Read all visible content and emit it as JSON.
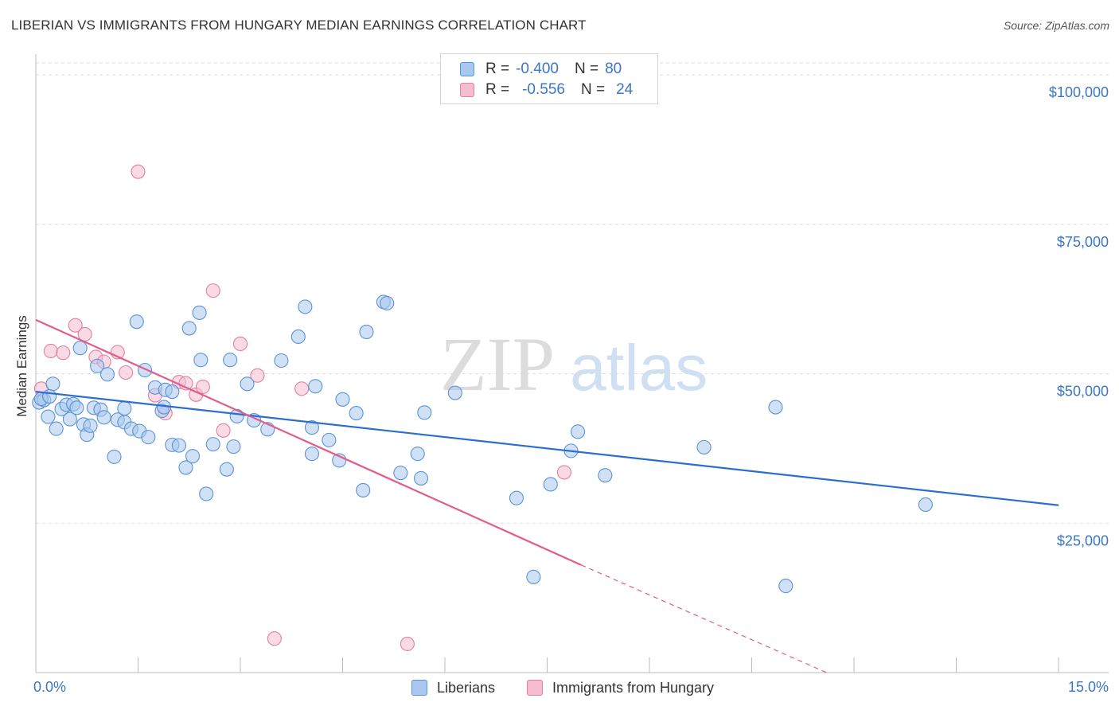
{
  "title": "LIBERIAN VS IMMIGRANTS FROM HUNGARY MEDIAN EARNINGS CORRELATION CHART",
  "source": "Source: ZipAtlas.com",
  "watermark": {
    "zip": "ZIP",
    "atlas": "atlas"
  },
  "legend": {
    "rows": [
      {
        "r_label": "R =",
        "r_value": "-0.400",
        "n_label": "N =",
        "n_value": "80"
      },
      {
        "r_label": "R =",
        "r_value": "-0.556",
        "n_label": "N =",
        "n_value": "24"
      }
    ]
  },
  "bottom_legend": {
    "liberians": "Liberians",
    "hungary": "Immigrants from Hungary"
  },
  "colors": {
    "blue_fill": "#a9c8ef",
    "blue_stroke": "#5b93d6",
    "blue_line": "#2a6fcf",
    "pink_fill": "#f6bdd0",
    "pink_stroke": "#e27fa2",
    "pink_line": "#e05d8e",
    "accent_text": "#3a76c4",
    "grid": "#dddddd"
  },
  "chart_data": {
    "type": "scatter",
    "title": "LIBERIAN VS IMMIGRANTS FROM HUNGARY MEDIAN EARNINGS CORRELATION CHART",
    "xlabel": "",
    "ylabel": "Median Earnings",
    "xlim": [
      0,
      15
    ],
    "ylim": [
      0,
      102000
    ],
    "x_tick_labels": [
      "0.0%",
      "15.0%"
    ],
    "y_ticks": [
      {
        "value": 25000,
        "label": "$25,000"
      },
      {
        "value": 50000,
        "label": "$50,000"
      },
      {
        "value": 75000,
        "label": "$75,000"
      },
      {
        "value": 100000,
        "label": "$100,000"
      }
    ],
    "grid": true,
    "legend_position": "top-center",
    "series": [
      {
        "name": "Liberians",
        "color": "#a9c8ef",
        "points": [
          [
            0.05,
            45200
          ],
          [
            0.12,
            45600
          ],
          [
            0.18,
            42800
          ],
          [
            0.25,
            48300
          ],
          [
            0.3,
            40800
          ],
          [
            0.38,
            44100
          ],
          [
            0.45,
            44800
          ],
          [
            0.5,
            42400
          ],
          [
            0.55,
            44900
          ],
          [
            0.6,
            44300
          ],
          [
            0.65,
            54300
          ],
          [
            0.7,
            41500
          ],
          [
            0.75,
            39800
          ],
          [
            0.8,
            41300
          ],
          [
            0.85,
            44300
          ],
          [
            0.9,
            51300
          ],
          [
            0.95,
            44000
          ],
          [
            1.0,
            42700
          ],
          [
            1.05,
            49900
          ],
          [
            1.15,
            36100
          ],
          [
            1.2,
            42300
          ],
          [
            1.3,
            44200
          ],
          [
            1.3,
            41900
          ],
          [
            1.4,
            40800
          ],
          [
            1.48,
            58700
          ],
          [
            1.52,
            40400
          ],
          [
            1.6,
            50600
          ],
          [
            1.65,
            39400
          ],
          [
            1.75,
            47700
          ],
          [
            1.85,
            43800
          ],
          [
            1.88,
            44400
          ],
          [
            1.9,
            47300
          ],
          [
            2.0,
            47000
          ],
          [
            2.0,
            38100
          ],
          [
            2.1,
            38000
          ],
          [
            2.2,
            34300
          ],
          [
            2.25,
            57600
          ],
          [
            2.3,
            36200
          ],
          [
            2.4,
            60200
          ],
          [
            2.42,
            52300
          ],
          [
            2.5,
            29900
          ],
          [
            2.6,
            38200
          ],
          [
            2.8,
            34000
          ],
          [
            2.85,
            52300
          ],
          [
            2.9,
            37800
          ],
          [
            2.95,
            42900
          ],
          [
            3.1,
            48300
          ],
          [
            3.2,
            42200
          ],
          [
            3.4,
            40700
          ],
          [
            3.6,
            52200
          ],
          [
            3.85,
            56200
          ],
          [
            3.95,
            61200
          ],
          [
            4.05,
            36600
          ],
          [
            4.05,
            41000
          ],
          [
            4.1,
            47900
          ],
          [
            4.3,
            38900
          ],
          [
            4.45,
            35500
          ],
          [
            4.5,
            45700
          ],
          [
            4.7,
            43400
          ],
          [
            4.8,
            30500
          ],
          [
            4.85,
            57000
          ],
          [
            5.1,
            62000
          ],
          [
            5.15,
            61800
          ],
          [
            5.35,
            33400
          ],
          [
            5.6,
            36600
          ],
          [
            5.65,
            32500
          ],
          [
            5.7,
            43500
          ],
          [
            6.15,
            46800
          ],
          [
            7.05,
            29200
          ],
          [
            7.3,
            16000
          ],
          [
            7.55,
            31500
          ],
          [
            7.85,
            37100
          ],
          [
            7.95,
            40300
          ],
          [
            8.35,
            33000
          ],
          [
            9.8,
            37700
          ],
          [
            10.85,
            44400
          ],
          [
            11.0,
            14500
          ],
          [
            13.05,
            28100
          ],
          [
            0.08,
            45800
          ],
          [
            0.2,
            46200
          ]
        ]
      },
      {
        "name": "Immigrants from Hungary",
        "color": "#f6bdd0",
        "points": [
          [
            0.08,
            47500
          ],
          [
            0.22,
            53800
          ],
          [
            0.4,
            53500
          ],
          [
            0.58,
            58100
          ],
          [
            0.72,
            56600
          ],
          [
            0.88,
            52800
          ],
          [
            1.0,
            52000
          ],
          [
            1.2,
            53600
          ],
          [
            1.32,
            50200
          ],
          [
            1.5,
            83800
          ],
          [
            1.75,
            46400
          ],
          [
            1.9,
            43400
          ],
          [
            2.1,
            48600
          ],
          [
            2.2,
            48400
          ],
          [
            2.35,
            46500
          ],
          [
            2.45,
            47800
          ],
          [
            2.6,
            63900
          ],
          [
            2.75,
            40500
          ],
          [
            3.0,
            55000
          ],
          [
            3.25,
            49700
          ],
          [
            3.5,
            5700
          ],
          [
            3.9,
            47500
          ],
          [
            5.45,
            4800
          ],
          [
            7.75,
            33500
          ]
        ]
      }
    ],
    "trendlines": [
      {
        "series": "Liberians",
        "x": [
          0,
          15
        ],
        "y": [
          47000,
          28000
        ]
      },
      {
        "series": "Immigrants from Hungary",
        "x": [
          0,
          8
        ],
        "y": [
          59000,
          18000
        ],
        "dashed_to": [
          11.6,
          0
        ]
      }
    ]
  }
}
